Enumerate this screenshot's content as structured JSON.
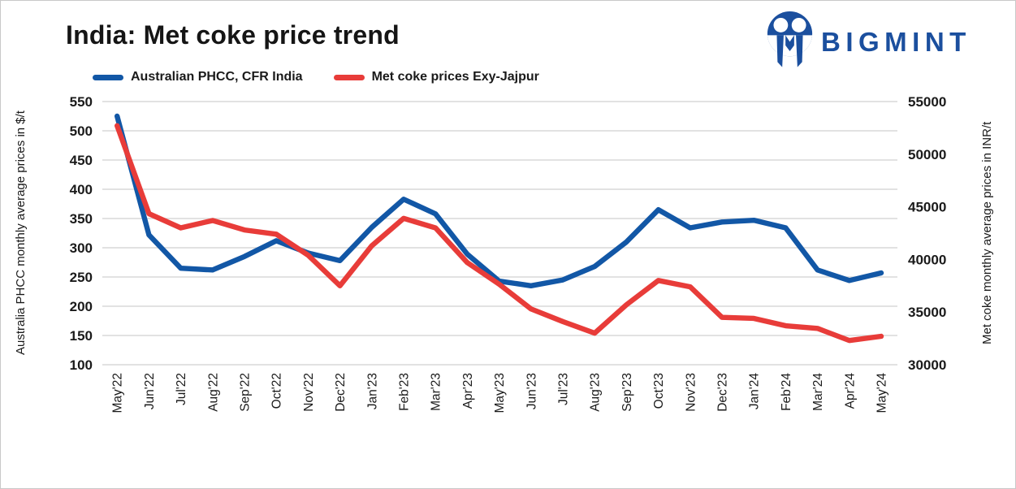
{
  "header": {
    "title": "India: Met coke price trend",
    "brand": "BIGMINT"
  },
  "legend": {
    "items": [
      {
        "label": "Australian PHCC, CFR India",
        "color": "#1257A6"
      },
      {
        "label": "Met coke prices Exy-Jajpur",
        "color": "#E83C39"
      }
    ]
  },
  "axes": {
    "left_title": "Australia PHCC monthly average prices in $/t",
    "right_title": "Met coke monthly average prices in INR/t"
  },
  "colors": {
    "blue_series": "#1257A6",
    "red_series": "#E83C39",
    "brand_navy": "#1B4F9E",
    "gridline": "#D9D9D9",
    "text": "#1A1A1A"
  },
  "chart_data": {
    "type": "line",
    "title": "India: Met coke price trend",
    "categories": [
      "May'22",
      "Jun'22",
      "Jul'22",
      "Aug'22",
      "Sep'22",
      "Oct'22",
      "Nov'22",
      "Dec'22",
      "Jan'23",
      "Feb'23",
      "Mar'23",
      "Apr'23",
      "May'23",
      "Jun'23",
      "Jul'23",
      "Aug'23",
      "Sep'23",
      "Oct'23",
      "Nov'23",
      "Dec'23",
      "Jan'24",
      "Feb'24",
      "Mar'24",
      "Apr'24",
      "May'24"
    ],
    "series": [
      {
        "name": "Australian PHCC, CFR India",
        "axis": "left",
        "unit": "$/t",
        "color": "#1257A6",
        "values": [
          525,
          322,
          265,
          262,
          285,
          312,
          291,
          278,
          335,
          383,
          358,
          289,
          243,
          235,
          245,
          268,
          310,
          365,
          334,
          344,
          347,
          334,
          262,
          244,
          257
        ]
      },
      {
        "name": "Met coke prices Exy-Jajpur",
        "axis": "right",
        "unit": "INR/t",
        "color": "#E83C39",
        "values": [
          52700,
          44350,
          43000,
          43700,
          42800,
          42400,
          40400,
          37500,
          41300,
          43900,
          43000,
          39700,
          37650,
          35300,
          34100,
          33000,
          35700,
          38000,
          37400,
          34500,
          34400,
          33700,
          33450,
          32300,
          32700
        ]
      }
    ],
    "left_axis": {
      "title": "Australia PHCC monthly average prices in $/t",
      "min": 100,
      "max": 550,
      "tick_step": 50
    },
    "right_axis": {
      "title": "Met coke monthly average prices in INR/t",
      "min": 30000,
      "max": 55000,
      "tick_step": 5000
    },
    "grid": true,
    "legend_position": "top"
  }
}
